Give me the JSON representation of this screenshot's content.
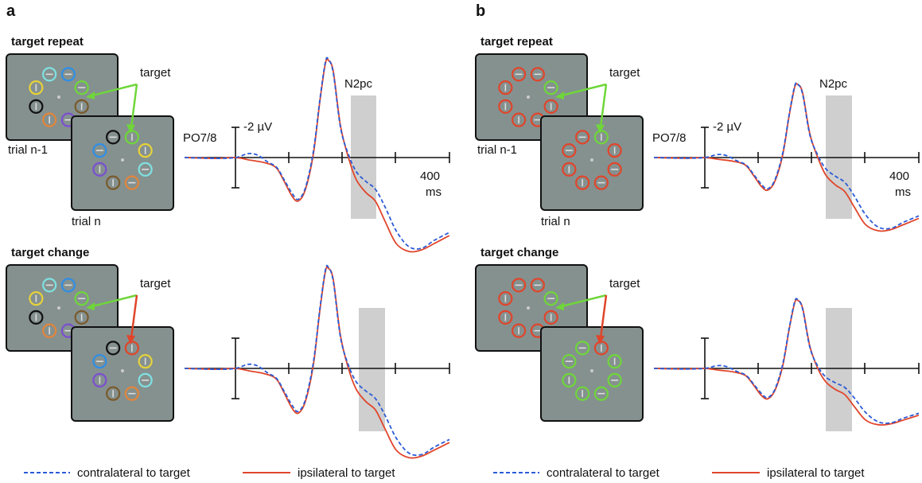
{
  "panels": [
    {
      "letter": "a",
      "rows": [
        {
          "title": "target repeat",
          "target_label": "target",
          "trial_prev": "trial n-1",
          "trial_cur": "trial n",
          "electrode": "PO7/8",
          "scale": "-2 µV",
          "time": "400",
          "time_unit": "ms",
          "window": "N2pc"
        },
        {
          "title": "target change",
          "target_label": "target"
        }
      ]
    },
    {
      "letter": "b",
      "rows": [
        {
          "title": "target repeat",
          "target_label": "target",
          "trial_prev": "trial n-1",
          "trial_cur": "trial n",
          "electrode": "PO7/8",
          "scale": "-2 µV",
          "time": "400",
          "time_unit": "ms",
          "window": "N2pc"
        },
        {
          "title": "target change",
          "target_label": "target"
        }
      ]
    }
  ],
  "legend": [
    {
      "name": "contralateral to target",
      "color": "#2a5bd7"
    },
    {
      "name": "ipsilateral to target",
      "color": "#e0452b"
    }
  ]
}
